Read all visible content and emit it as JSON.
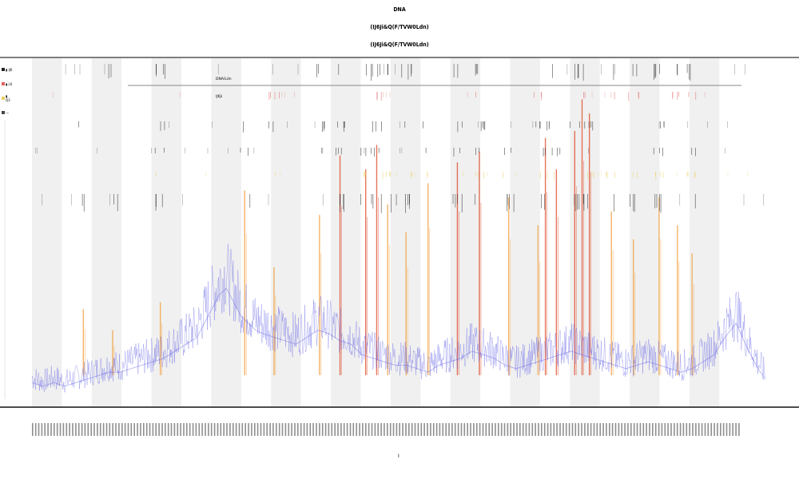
{
  "header": {
    "line1": "DNA",
    "line2": "(IJ6Ji&Q(F/TVW0Ldn)",
    "line3": "(IJ6Ji&Q(F/TVW0Ldn)"
  },
  "colors": {
    "band": "#f0f0f0",
    "axis": "#555555",
    "coverage": "#5a5ae6",
    "peak_red": "#e05030",
    "peak_orange": "#f0a040",
    "track_dark": "#222222",
    "track_red": "#e06060",
    "track_yellow": "#e8d060",
    "divider": "#888888"
  },
  "legend": [
    {
      "label": "▮ IJ6",
      "color": "#222222"
    },
    {
      "label": "▮ L0",
      "color": "#e06060"
    },
    {
      "label": "▮ Q3",
      "color": "#e8d060"
    },
    {
      "label": "—",
      "color": "#444444"
    }
  ],
  "inner_labels": [
    "DNA/Ldn",
    "IJ6Ji"
  ],
  "chart_data": {
    "type": "area",
    "title": "DNA",
    "subtitle": "(IJ6Ji&Q(F/TVW0Ldn)",
    "xlabel": "I",
    "ylabel": "",
    "x_range": [
      0,
      1000
    ],
    "ylim": [
      0,
      100
    ],
    "grid": false,
    "legend_position": "top-left",
    "band_count": 12,
    "series": [
      {
        "kind": "coverage",
        "x": [
          0,
          15,
          30,
          45,
          60,
          75,
          90,
          105,
          120,
          135,
          150,
          165,
          180,
          195,
          210,
          225,
          235,
          245,
          255,
          265,
          275,
          285,
          295,
          305,
          315,
          330,
          345,
          360,
          375,
          390,
          405,
          420,
          435,
          450,
          465,
          480,
          495,
          510,
          525,
          540,
          555,
          570,
          585,
          600,
          615,
          630,
          645,
          660,
          675,
          690,
          705,
          720,
          735,
          750,
          765,
          780,
          795,
          810,
          825,
          840,
          855,
          870,
          885,
          900,
          915,
          930,
          945,
          960,
          975,
          990,
          1000
        ],
        "values": [
          7,
          6,
          7,
          6,
          7,
          8,
          9,
          10,
          10,
          11,
          12,
          13,
          14,
          16,
          18,
          20,
          24,
          28,
          32,
          34,
          30,
          26,
          24,
          22,
          21,
          20,
          19,
          18,
          20,
          22,
          21,
          19,
          18,
          15,
          14,
          13,
          12,
          12,
          11,
          10,
          12,
          13,
          14,
          16,
          15,
          14,
          12,
          11,
          12,
          13,
          14,
          15,
          16,
          15,
          14,
          13,
          12,
          11,
          12,
          13,
          12,
          11,
          10,
          11,
          13,
          15,
          20,
          24,
          17,
          11,
          8
        ]
      }
    ],
    "peaks": {
      "x": [
        70,
        110,
        175,
        290,
        330,
        392,
        420,
        455,
        470,
        485,
        510,
        540,
        580,
        610,
        650,
        690,
        700,
        715,
        740,
        750,
        760,
        790,
        820,
        855,
        880,
        900
      ],
      "heights": [
        28,
        22,
        30,
        62,
        40,
        55,
        72,
        68,
        75,
        58,
        50,
        64,
        70,
        73,
        60,
        52,
        77,
        68,
        79,
        88,
        84,
        56,
        48,
        60,
        52,
        44
      ]
    },
    "bands": {
      "x_start": [
        0,
        81.5,
        163,
        244.5,
        326,
        407.5,
        489,
        570.5,
        652,
        733.5,
        815,
        896.5
      ],
      "width": 40.7
    },
    "tracks": {
      "divider_value": 0.93,
      "lanes": [
        {
          "name": "lane-1",
          "color": "#222222",
          "density": 0.6
        },
        {
          "name": "lane-2",
          "color": "#e06060",
          "density": 0.4
        },
        {
          "name": "lane-3",
          "color": "#222222",
          "density": 0.7
        },
        {
          "name": "lane-4",
          "color": "#222222",
          "density": 0.65
        },
        {
          "name": "lane-5",
          "color": "#e8d060",
          "density": 0.45
        },
        {
          "name": "lane-6",
          "color": "#222222",
          "density": 0.8
        }
      ]
    },
    "ticks": {
      "count": 230
    }
  }
}
